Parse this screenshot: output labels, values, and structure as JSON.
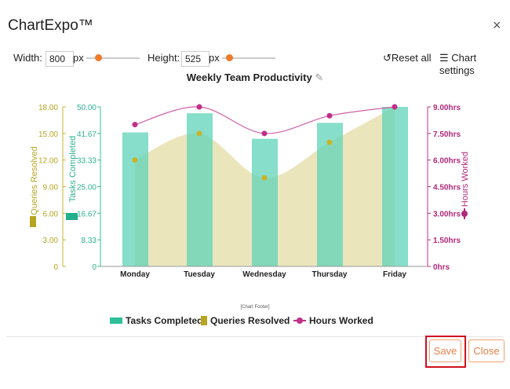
{
  "app": {
    "title": "ChartExpo™",
    "close_icon": "×"
  },
  "toolbar": {
    "width_label": "Width:",
    "width_value": "800",
    "width_unit": "px",
    "height_label": "Height:",
    "height_value": "525",
    "height_unit": "px",
    "reset_label": "Reset all",
    "settings_label": "Chart settings"
  },
  "footer": {
    "chart_footer": "[Chart Footer]",
    "save_label": "Save",
    "close_label": "Close"
  },
  "colors": {
    "tasks": "#5fd3b8",
    "queries": "#c7b42c",
    "queries_area": "#e8e0b0",
    "hours": "#c0308a"
  },
  "chart_data": {
    "type": "bar",
    "title": "Weekly Team Productivity",
    "categories": [
      "Monday",
      "Tuesday",
      "Wednesday",
      "Thursday",
      "Friday"
    ],
    "series": [
      {
        "name": "Tasks Completed",
        "kind": "bar",
        "axis": "left-inner",
        "values": [
          42,
          48,
          40,
          45,
          50
        ]
      },
      {
        "name": "Queries Resolved",
        "kind": "area",
        "axis": "left-outer",
        "values": [
          12,
          15,
          10,
          14,
          18
        ]
      },
      {
        "name": "Hours Worked",
        "kind": "line",
        "axis": "right",
        "values": [
          8,
          9,
          7.5,
          8.5,
          9
        ]
      }
    ],
    "axes": {
      "tasks": {
        "label": "Tasks Completed",
        "ylim": [
          0,
          50
        ],
        "ticks": [
          "0",
          "8.33",
          "16.67",
          "25.00",
          "33.33",
          "41.67",
          "50.00"
        ]
      },
      "queries": {
        "label": "Queries Resolved",
        "ylim": [
          0,
          18
        ],
        "ticks": [
          "0",
          "3.00",
          "6.00",
          "9.00",
          "12.00",
          "15.00",
          "18.00"
        ]
      },
      "hours": {
        "label": "Hours Worked",
        "ylim": [
          0,
          9
        ],
        "ticks": [
          "0hrs",
          "1.50hrs",
          "3.00hrs",
          "4.50hrs",
          "6.00hrs",
          "7.50hrs",
          "9.00hrs"
        ]
      }
    },
    "legend_position": "bottom"
  }
}
